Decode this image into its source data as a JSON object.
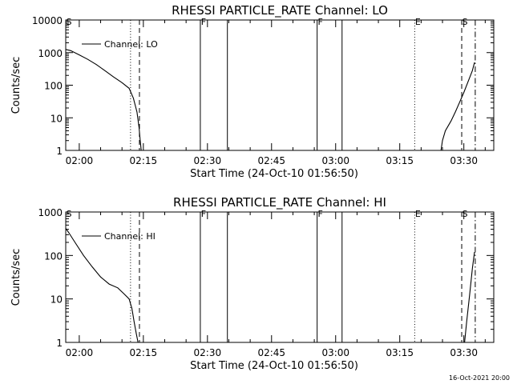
{
  "chart_data": [
    {
      "type": "line",
      "title": "RHESSI PARTICLE_RATE Channel: LO",
      "xlabel": "Start Time (24-Oct-10 01:56:50)",
      "ylabel": "Counts/sec",
      "y_scale": "log",
      "ylim": [
        1,
        10000
      ],
      "xlim": [
        "01:56:50",
        "03:37:00"
      ],
      "x_tick_labels": [
        "02:00",
        "02:15",
        "02:30",
        "02:45",
        "03:00",
        "03:15",
        "03:30"
      ],
      "y_tick_labels": [
        "1",
        "10",
        "100",
        "1000",
        "10000"
      ],
      "y_tick_values": [
        1,
        10,
        100,
        1000,
        10000
      ],
      "legend": {
        "label": "Channel: LO",
        "placement": "top-left"
      },
      "grid": false,
      "series": [
        {
          "name": "Channel: LO",
          "segments": [
            {
              "x": [
                "01:56:50",
                "01:58:00",
                "02:00:00",
                "02:02:00",
                "02:04:00",
                "02:06:00",
                "02:08:00",
                "02:10:00",
                "02:11:40",
                "02:12:40",
                "02:13:30",
                "02:14:00",
                "02:14:15",
                "02:14:30"
              ],
              "y": [
                1250,
                1150,
                850,
                620,
                430,
                280,
                180,
                120,
                80,
                40,
                15,
                5,
                2,
                1
              ]
            },
            {
              "x": [
                "03:24:40",
                "03:25:00",
                "03:25:40",
                "03:27:00",
                "03:28:00",
                "03:29:00",
                "03:30:00",
                "03:31:00",
                "03:32:00",
                "03:32:30"
              ],
              "y": [
                1,
                2,
                4,
                8,
                15,
                30,
                60,
                130,
                280,
                500
              ]
            }
          ]
        }
      ],
      "event_markers": [
        {
          "label": "S",
          "time": "01:56:50",
          "style": "dotted"
        },
        {
          "label": "",
          "time": "02:12:00",
          "style": "dotted"
        },
        {
          "label": "",
          "time": "02:14:05",
          "style": "dashed"
        },
        {
          "label": "F",
          "time": "02:28:20",
          "style": "solid"
        },
        {
          "label": "",
          "time": "02:34:40",
          "style": "solid"
        },
        {
          "label": "F",
          "time": "02:55:40",
          "style": "solid"
        },
        {
          "label": "",
          "time": "03:01:30",
          "style": "solid"
        },
        {
          "label": "E",
          "time": "03:18:30",
          "style": "dotted"
        },
        {
          "label": "S",
          "time": "03:29:30",
          "style": "dashed"
        },
        {
          "label": "",
          "time": "03:32:40",
          "style": "dashdot"
        }
      ]
    },
    {
      "type": "line",
      "title": "RHESSI PARTICLE_RATE Channel: HI",
      "xlabel": "Start Time (24-Oct-10 01:56:50)",
      "ylabel": "Counts/sec",
      "y_scale": "log",
      "ylim": [
        1,
        1000
      ],
      "xlim": [
        "01:56:50",
        "03:37:00"
      ],
      "x_tick_labels": [
        "02:00",
        "02:15",
        "02:30",
        "02:45",
        "03:00",
        "03:15",
        "03:30"
      ],
      "y_tick_labels": [
        "1",
        "10",
        "100",
        "1000"
      ],
      "y_tick_values": [
        1,
        10,
        100,
        1000
      ],
      "legend": {
        "label": "Channel: HI",
        "placement": "top-left"
      },
      "grid": false,
      "series": [
        {
          "name": "Channel: HI",
          "segments": [
            {
              "x": [
                "01:56:50",
                "01:57:30",
                "01:59:00",
                "02:01:00",
                "02:03:00",
                "02:05:00",
                "02:07:00",
                "02:09:00",
                "02:10:30",
                "02:11:40",
                "02:12:20",
                "02:12:50",
                "02:13:20",
                "02:13:45"
              ],
              "y": [
                420,
                340,
                200,
                100,
                55,
                32,
                22,
                18,
                13,
                10,
                6,
                3,
                1.6,
                1
              ]
            },
            {
              "x": [
                "03:30:10",
                "03:30:40",
                "03:31:20",
                "03:32:00",
                "03:32:30"
              ],
              "y": [
                1,
                3,
                12,
                50,
                120
              ]
            }
          ]
        }
      ],
      "event_markers": [
        {
          "label": "S",
          "time": "01:56:50",
          "style": "dotted"
        },
        {
          "label": "",
          "time": "02:12:00",
          "style": "dotted"
        },
        {
          "label": "",
          "time": "02:14:05",
          "style": "dashed"
        },
        {
          "label": "F",
          "time": "02:28:20",
          "style": "solid"
        },
        {
          "label": "",
          "time": "02:34:40",
          "style": "solid"
        },
        {
          "label": "F",
          "time": "02:55:40",
          "style": "solid"
        },
        {
          "label": "",
          "time": "03:01:30",
          "style": "solid"
        },
        {
          "label": "E",
          "time": "03:18:30",
          "style": "dotted"
        },
        {
          "label": "S",
          "time": "03:29:30",
          "style": "dashed"
        },
        {
          "label": "",
          "time": "03:32:40",
          "style": "dashdot"
        }
      ]
    }
  ],
  "footer": {
    "stamp": "16-Oct-2021 20:00"
  }
}
